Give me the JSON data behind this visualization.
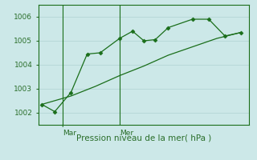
{
  "xlabel": "Pression niveau de la mer( hPa )",
  "bg_color": "#cce8e8",
  "grid_color": "#b8d8d8",
  "line_color": "#1a6e1a",
  "marker_color": "#1a6e1a",
  "ylim": [
    1001.5,
    1006.5
  ],
  "xlim": [
    0,
    13
  ],
  "yticks": [
    1002,
    1003,
    1004,
    1005,
    1006
  ],
  "vline1_x": 1.5,
  "vline2_x": 5.0,
  "vline_label1": "Mar",
  "vline_label2": "Mer",
  "line1_x": [
    0.2,
    1.0,
    2.0,
    3.0,
    3.8,
    5.0,
    5.8,
    6.5,
    7.2,
    8.0,
    9.5,
    10.5,
    11.5,
    12.5
  ],
  "line1_y": [
    1002.35,
    1002.05,
    1002.85,
    1004.45,
    1004.5,
    1005.1,
    1005.4,
    1005.0,
    1005.05,
    1005.55,
    1005.9,
    1005.9,
    1005.2,
    1005.35
  ],
  "line2_x": [
    0.2,
    2.0,
    3.5,
    5.0,
    6.5,
    8.0,
    9.5,
    11.0,
    12.5
  ],
  "line2_y": [
    1002.35,
    1002.7,
    1003.1,
    1003.55,
    1003.95,
    1004.4,
    1004.75,
    1005.1,
    1005.35
  ],
  "font_color": "#2a6e2a",
  "tick_fontsize": 6.5,
  "label_fontsize": 7.5
}
